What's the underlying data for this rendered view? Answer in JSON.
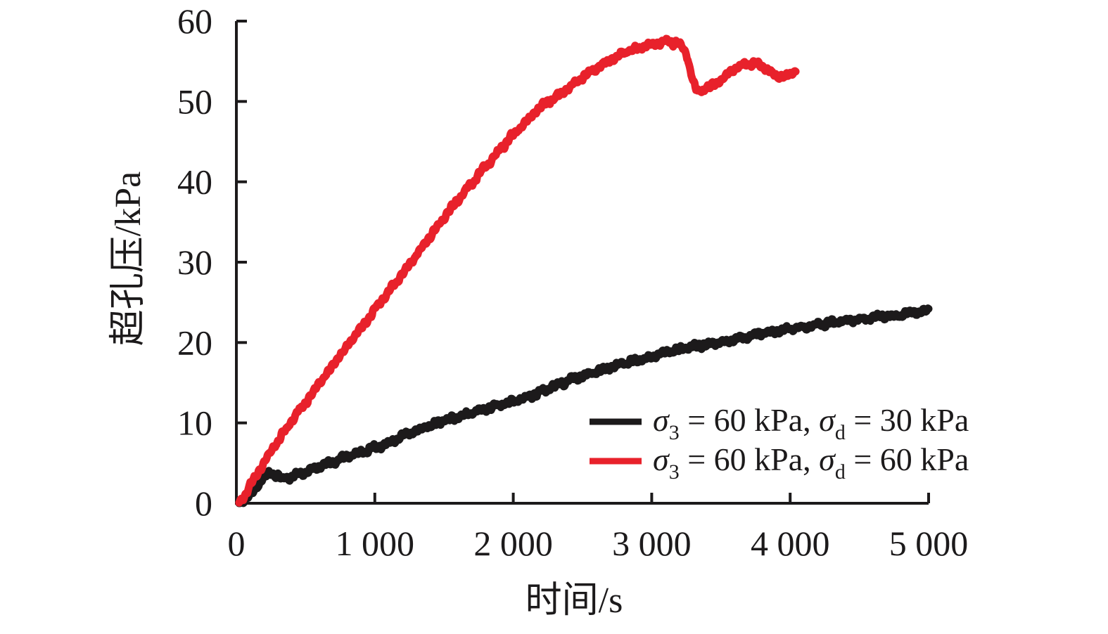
{
  "figure": {
    "background": "#ffffff",
    "axis_color": "#1c1a1b"
  },
  "chart_data": {
    "type": "line",
    "title": "",
    "xlabel": "时间/s",
    "ylabel": "超孔压/kPa",
    "xlim": [
      0,
      5000
    ],
    "ylim": [
      0,
      60
    ],
    "grid": false,
    "legend_position": "inside-bottom-right",
    "x_ticks": {
      "values": [
        0,
        1000,
        2000,
        3000,
        4000,
        5000
      ],
      "labels": [
        "0",
        "1 000",
        "2 000",
        "3 000",
        "4 000",
        "5 000"
      ]
    },
    "y_ticks": {
      "values": [
        0,
        10,
        20,
        30,
        40,
        50,
        60
      ],
      "labels": [
        "0",
        "10",
        "20",
        "30",
        "40",
        "50",
        "60"
      ]
    },
    "series": [
      {
        "name": "σ3 = 60 kPa, σd = 30 kPa",
        "color": "#1c1a1b",
        "legend_parts": [
          {
            "text": "σ",
            "italic": true
          },
          {
            "text": "3",
            "sub": true
          },
          {
            "text": " = 60 kPa, "
          },
          {
            "text": "σ",
            "italic": true
          },
          {
            "text": "d",
            "sub": true
          },
          {
            "text": " = 30 kPa"
          }
        ],
        "points": [
          [
            20,
            0
          ],
          [
            120,
            1.5
          ],
          [
            200,
            3.3
          ],
          [
            260,
            3.9
          ],
          [
            330,
            3.0
          ],
          [
            450,
            3.6
          ],
          [
            600,
            4.6
          ],
          [
            800,
            5.8
          ],
          [
            1000,
            6.9
          ],
          [
            1200,
            8.3
          ],
          [
            1400,
            9.7
          ],
          [
            1600,
            10.8
          ],
          [
            1800,
            11.8
          ],
          [
            2000,
            12.7
          ],
          [
            2150,
            13.5
          ],
          [
            2300,
            14.6
          ],
          [
            2450,
            15.6
          ],
          [
            2600,
            16.4
          ],
          [
            2800,
            17.4
          ],
          [
            3000,
            18.3
          ],
          [
            3200,
            19.1
          ],
          [
            3400,
            19.8
          ],
          [
            3600,
            20.4
          ],
          [
            3800,
            21.1
          ],
          [
            4000,
            21.7
          ],
          [
            4200,
            22.2
          ],
          [
            4400,
            22.7
          ],
          [
            4600,
            23.1
          ],
          [
            4800,
            23.5
          ],
          [
            5000,
            24.0
          ]
        ]
      },
      {
        "name": "σ3 = 60 kPa, σd = 60 kPa",
        "color": "#e8212b",
        "legend_parts": [
          {
            "text": "σ",
            "italic": true
          },
          {
            "text": "3",
            "sub": true
          },
          {
            "text": " = 60 kPa, "
          },
          {
            "text": "σ",
            "italic": true
          },
          {
            "text": "d",
            "sub": true
          },
          {
            "text": " = 60 kPa"
          }
        ],
        "points": [
          [
            20,
            0
          ],
          [
            150,
            3.6
          ],
          [
            300,
            7.8
          ],
          [
            450,
            11.4
          ],
          [
            600,
            14.9
          ],
          [
            800,
            19.5
          ],
          [
            1000,
            24.1
          ],
          [
            1200,
            28.6
          ],
          [
            1400,
            33.2
          ],
          [
            1600,
            37.8
          ],
          [
            1800,
            41.9
          ],
          [
            2000,
            45.9
          ],
          [
            2200,
            49.3
          ],
          [
            2400,
            51.7
          ],
          [
            2600,
            54.2
          ],
          [
            2800,
            56.1
          ],
          [
            2950,
            57.0
          ],
          [
            3100,
            57.4
          ],
          [
            3200,
            57.2
          ],
          [
            3260,
            55.5
          ],
          [
            3300,
            52.3
          ],
          [
            3330,
            51.2
          ],
          [
            3420,
            51.8
          ],
          [
            3520,
            53.0
          ],
          [
            3620,
            54.3
          ],
          [
            3700,
            54.8
          ],
          [
            3780,
            54.5
          ],
          [
            3880,
            53.4
          ],
          [
            3950,
            53.0
          ],
          [
            4040,
            53.7
          ]
        ]
      }
    ]
  }
}
